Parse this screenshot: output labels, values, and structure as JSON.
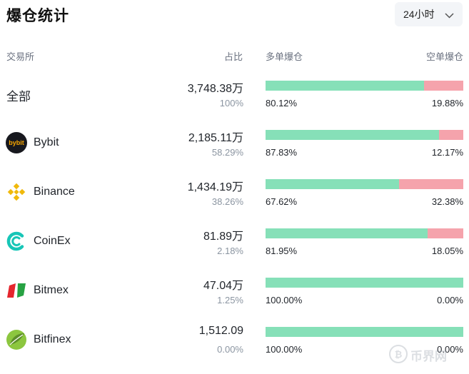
{
  "header": {
    "title": "爆仓统计",
    "range_label": "24小时"
  },
  "columns": {
    "exchange": "交易所",
    "share": "占比",
    "long": "多单爆仓",
    "short": "空单爆仓"
  },
  "colors": {
    "long": "#86e0b8",
    "short": "#f5a3ac"
  },
  "rows": [
    {
      "name": "全部",
      "icon": "",
      "amount": "3,748.38万",
      "share": "100%",
      "long_pct": "80.12%",
      "short_pct": "19.88%",
      "long_fraction": 0.8012
    },
    {
      "name": "Bybit",
      "icon": "bybit-logo-icon",
      "logo_text": "bybit",
      "amount": "2,185.11万",
      "share": "58.29%",
      "long_pct": "87.83%",
      "short_pct": "12.17%",
      "long_fraction": 0.8783
    },
    {
      "name": "Binance",
      "icon": "binance-logo-icon",
      "amount": "1,434.19万",
      "share": "38.26%",
      "long_pct": "67.62%",
      "short_pct": "32.38%",
      "long_fraction": 0.6762
    },
    {
      "name": "CoinEx",
      "icon": "coinex-logo-icon",
      "amount": "81.89万",
      "share": "2.18%",
      "long_pct": "81.95%",
      "short_pct": "18.05%",
      "long_fraction": 0.8195
    },
    {
      "name": "Bitmex",
      "icon": "bitmex-logo-icon",
      "amount": "47.04万",
      "share": "1.25%",
      "long_pct": "100.00%",
      "short_pct": "0.00%",
      "long_fraction": 1.0
    },
    {
      "name": "Bitfinex",
      "icon": "bitfinex-logo-icon",
      "amount": "1,512.09",
      "share": "0.00%",
      "long_pct": "100.00%",
      "short_pct": "0.00%",
      "long_fraction": 1.0
    }
  ],
  "watermark": {
    "text": "币界网"
  }
}
